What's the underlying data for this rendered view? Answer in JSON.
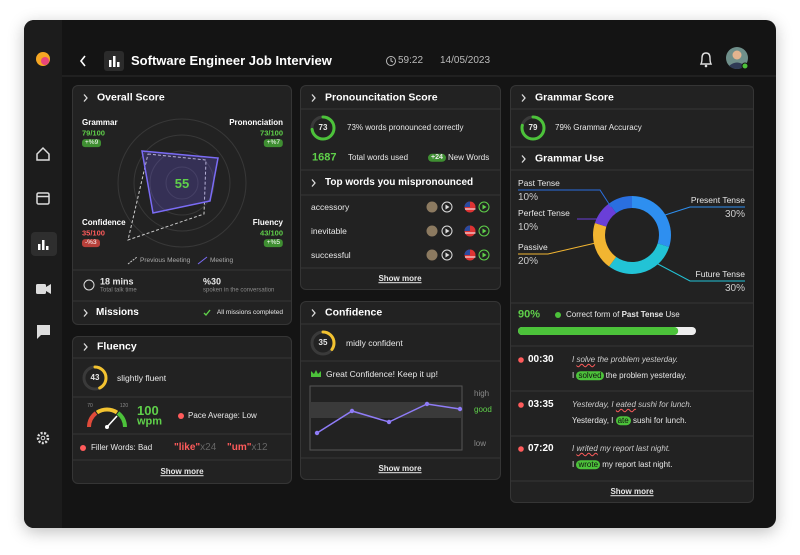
{
  "header": {
    "title": "Software Engineer Job Interview",
    "timer": "59:22",
    "date": "14/05/2023"
  },
  "overall_score": {
    "title": "Overall Score",
    "center_score": "55",
    "metrics": [
      {
        "label": "Grammar",
        "score": "79/100",
        "change": "+%9",
        "color": "#3f8f32"
      },
      {
        "label": "Prononciation",
        "score": "73/100",
        "change": "+%7",
        "color": "#3f8f32"
      },
      {
        "label": "Confidence",
        "score": "35/100",
        "change": "-%3",
        "color": "#b8403a"
      },
      {
        "label": "Fluency",
        "score": "43/100",
        "change": "+%5",
        "color": "#3f8f32"
      }
    ],
    "legend": [
      "Previous Meeting",
      "Meeting"
    ],
    "talk_time": {
      "value": "18 mins",
      "label": "Total talk time"
    },
    "spoken": {
      "value": "%30",
      "label": "spoken in the conversation"
    }
  },
  "missions": {
    "title": "Missions",
    "status": "All missions completed"
  },
  "fluency": {
    "title": "Fluency",
    "score": 43,
    "color": "#f2c230",
    "level": "slightly fluent",
    "gauge_labels": [
      "70",
      "120"
    ],
    "speed": "100",
    "unit": "wpm",
    "pace": "Pace Average: Low",
    "filler": "Filler Words: Bad",
    "filler_words": [
      {
        "word": "\"like\"",
        "count": "x24"
      },
      {
        "word": "\"um\"",
        "count": "x12"
      }
    ],
    "show_more": "Show more"
  },
  "pronunciation": {
    "title": "Pronouncitation Score",
    "score": 73,
    "color": "#4cc23a",
    "summary": "73% words pronounced correctly",
    "total_words": "1687",
    "total_words_label": "Total words used",
    "new_words": "+24",
    "new_words_label": "New Words",
    "mispronounced_title": "Top words you mispronounced",
    "words": [
      "accessory",
      "inevitable",
      "successful"
    ],
    "show_more": "Show more"
  },
  "confidence": {
    "title": "Confidence",
    "score": 35,
    "color": "#f2c230",
    "level": "midly confident",
    "message": "Great Confidence! Keep it up!",
    "levels": [
      "high",
      "good",
      "low"
    ],
    "show_more": "Show more"
  },
  "grammar": {
    "title": "Grammar Score",
    "score": 79,
    "color": "#4cc23a",
    "summary": "79% Grammar Accuracy",
    "use_title": "Grammar Use",
    "tenses": [
      {
        "name": "Present Tense",
        "value": 30,
        "label": "30%",
        "color": "#2e8ff0"
      },
      {
        "name": "Future Tense",
        "value": 30,
        "label": "30%",
        "color": "#22c3d6"
      },
      {
        "name": "Passive",
        "value": 20,
        "label": "20%",
        "color": "#f2b531"
      },
      {
        "name": "Perfect Tense",
        "value": 10,
        "label": "10%",
        "color": "#6a3fd8"
      },
      {
        "name": "Past Tense",
        "value": 10,
        "label": "10%",
        "color": "#2a6fe0"
      }
    ],
    "correct_form": {
      "value": 90,
      "label": "90%",
      "before": "Correct form of ",
      "emphasis": "Past Tense",
      "after": " Use"
    },
    "corrections": [
      {
        "time": "00:30",
        "original": [
          "I ",
          "solve",
          " the problem yesterday."
        ],
        "corrected": [
          "I ",
          "solved",
          " the problem yesterday."
        ]
      },
      {
        "time": "03:35",
        "original": [
          "Yesterday, I ",
          "eated",
          " sushi for lunch."
        ],
        "corrected": [
          "Yesterday, I ",
          "ate",
          " sushi for lunch."
        ]
      },
      {
        "time": "07:20",
        "original": [
          "I ",
          "writed",
          " my report last night."
        ],
        "corrected": [
          "I ",
          "wrote",
          " my report last night."
        ]
      }
    ],
    "show_more": "Show more"
  }
}
